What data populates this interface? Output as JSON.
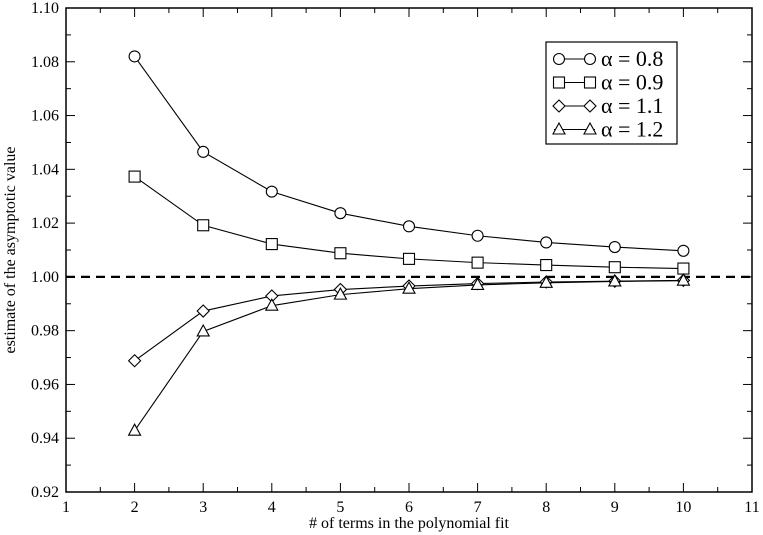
{
  "chart_data": {
    "type": "line",
    "title": "",
    "xlabel": "# of terms in the polynomial fit",
    "ylabel": "estimate of the asymptotic value",
    "xlim": [
      1,
      11
    ],
    "ylim": [
      0.92,
      1.1
    ],
    "xticks": [
      1,
      2,
      3,
      4,
      5,
      6,
      7,
      8,
      9,
      10,
      11
    ],
    "yticks": [
      0.92,
      0.94,
      0.96,
      0.98,
      1.0,
      1.02,
      1.04,
      1.06,
      1.08,
      1.1
    ],
    "x": [
      2,
      3,
      4,
      5,
      6,
      7,
      8,
      9,
      10
    ],
    "reference_line": {
      "y": 1.0,
      "style": "dashed"
    },
    "legend_position": "top-right",
    "grid": false,
    "series": [
      {
        "name": "α = 0.8",
        "marker": "circle",
        "values": [
          1.082,
          1.0465,
          1.0317,
          1.0237,
          1.0188,
          1.0153,
          1.0128,
          1.0111,
          1.0097
        ]
      },
      {
        "name": "α = 0.9",
        "marker": "square",
        "values": [
          1.0373,
          1.0192,
          1.0122,
          1.0088,
          1.0067,
          1.0053,
          1.0044,
          1.0036,
          1.0031
        ]
      },
      {
        "name": "α = 1.1",
        "marker": "diamond",
        "values": [
          0.9688,
          0.9873,
          0.9929,
          0.9953,
          0.9966,
          0.9975,
          0.9981,
          0.9984,
          0.9987
        ]
      },
      {
        "name": "α = 1.2",
        "marker": "triangle",
        "values": [
          0.9428,
          0.9797,
          0.9893,
          0.9934,
          0.9956,
          0.997,
          0.9978,
          0.9983,
          0.9986
        ]
      }
    ]
  }
}
